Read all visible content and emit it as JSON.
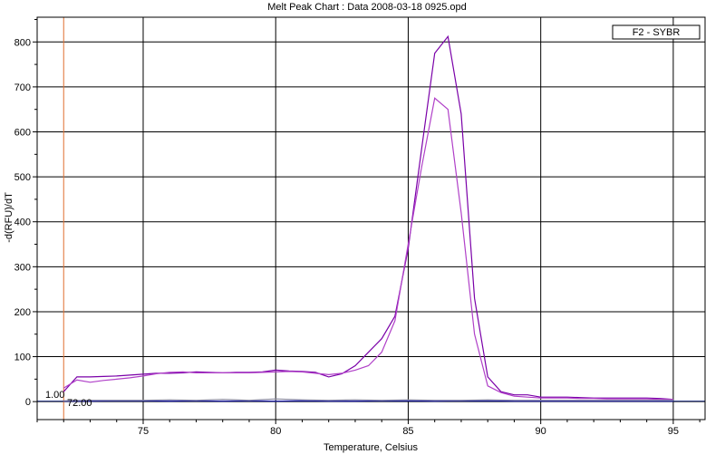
{
  "chart_data": {
    "type": "line",
    "title": "Melt Peak Chart : Data 2008-03-18 0925.opd",
    "xlabel": "Temperature, Celsius",
    "ylabel": "-d(RFU)/dT",
    "xlim": [
      71.0,
      96.2
    ],
    "ylim": [
      -40,
      855
    ],
    "x_ticks": [
      75,
      80,
      85,
      90,
      95
    ],
    "y_ticks": [
      0,
      100,
      200,
      300,
      400,
      500,
      600,
      700,
      800
    ],
    "grid": true,
    "legend": {
      "position": "top-right",
      "entries": [
        "F2 - SYBR"
      ]
    },
    "threshold": {
      "label": "1.00",
      "value": 1.0
    },
    "temperature_marker": {
      "label": "72.00",
      "value": 72.0,
      "color": "#e07030"
    },
    "series": [
      {
        "color": "#7a00a8",
        "x": [
          72.0,
          72.5,
          73.0,
          73.5,
          74.0,
          74.5,
          75.0,
          75.5,
          76.0,
          76.5,
          77.0,
          77.5,
          78.0,
          78.5,
          79.0,
          79.5,
          80.0,
          80.5,
          81.0,
          81.5,
          82.0,
          82.5,
          83.0,
          83.5,
          84.0,
          84.5,
          85.0,
          85.5,
          86.0,
          86.5,
          87.0,
          87.5,
          88.0,
          88.5,
          89.0,
          89.5,
          90.0,
          90.5,
          91.0,
          91.5,
          92.0,
          92.5,
          93.0,
          93.5,
          94.0,
          94.5,
          95.0
        ],
        "values": [
          22,
          55,
          55,
          56,
          57,
          59,
          61,
          63,
          63,
          64,
          66,
          65,
          64,
          65,
          65,
          66,
          70,
          68,
          67,
          65,
          55,
          62,
          80,
          110,
          140,
          190,
          340,
          560,
          775,
          812,
          640,
          230,
          55,
          22,
          15,
          15,
          10,
          10,
          10,
          9,
          8,
          8,
          8,
          8,
          8,
          7,
          5
        ]
      },
      {
        "color": "#b040c8",
        "x": [
          72.0,
          72.5,
          73.0,
          73.5,
          74.0,
          74.5,
          75.0,
          75.5,
          76.0,
          76.5,
          77.0,
          77.5,
          78.0,
          78.5,
          79.0,
          79.5,
          80.0,
          80.5,
          81.0,
          81.5,
          82.0,
          82.5,
          83.0,
          83.5,
          84.0,
          84.5,
          85.0,
          85.5,
          86.0,
          86.5,
          87.0,
          87.5,
          88.0,
          88.5,
          89.0,
          89.5,
          90.0,
          90.5,
          91.0,
          91.5,
          92.0,
          92.5,
          93.0,
          93.5,
          94.0,
          94.5,
          95.0
        ],
        "values": [
          30,
          48,
          43,
          47,
          50,
          53,
          57,
          62,
          65,
          66,
          64,
          64,
          64,
          64,
          64,
          65,
          66,
          67,
          66,
          63,
          60,
          63,
          70,
          80,
          110,
          180,
          350,
          520,
          675,
          650,
          420,
          150,
          35,
          20,
          12,
          10,
          8,
          8,
          8,
          7,
          7,
          6,
          6,
          6,
          6,
          5,
          5
        ]
      },
      {
        "color": "#2020b0",
        "x": [
          72.0,
          73.0,
          74.0,
          75.0,
          76.0,
          77.0,
          78.0,
          79.0,
          80.0,
          81.0,
          82.0,
          83.0,
          84.0,
          85.0,
          86.0,
          87.0,
          88.0,
          89.0,
          90.0,
          91.0,
          92.0,
          93.0,
          94.0,
          95.0
        ],
        "values": [
          1,
          1,
          2,
          2,
          1,
          2,
          1,
          2,
          1,
          2,
          1,
          1,
          2,
          2,
          1,
          2,
          2,
          1,
          1,
          1,
          1,
          1,
          1,
          1
        ]
      },
      {
        "color": "#8888a0",
        "x": [
          72.0,
          73.0,
          74.0,
          75.0,
          76.0,
          77.0,
          78.0,
          79.0,
          80.0,
          81.0,
          82.0,
          83.0,
          84.0,
          85.0,
          86.0,
          87.0,
          88.0,
          89.0,
          90.0,
          91.0,
          92.0,
          93.0,
          94.0,
          95.0
        ],
        "values": [
          2,
          3,
          3,
          3,
          4,
          3,
          5,
          3,
          6,
          4,
          3,
          4,
          3,
          4,
          3,
          3,
          4,
          3,
          3,
          3,
          3,
          3,
          3,
          3
        ]
      }
    ]
  }
}
